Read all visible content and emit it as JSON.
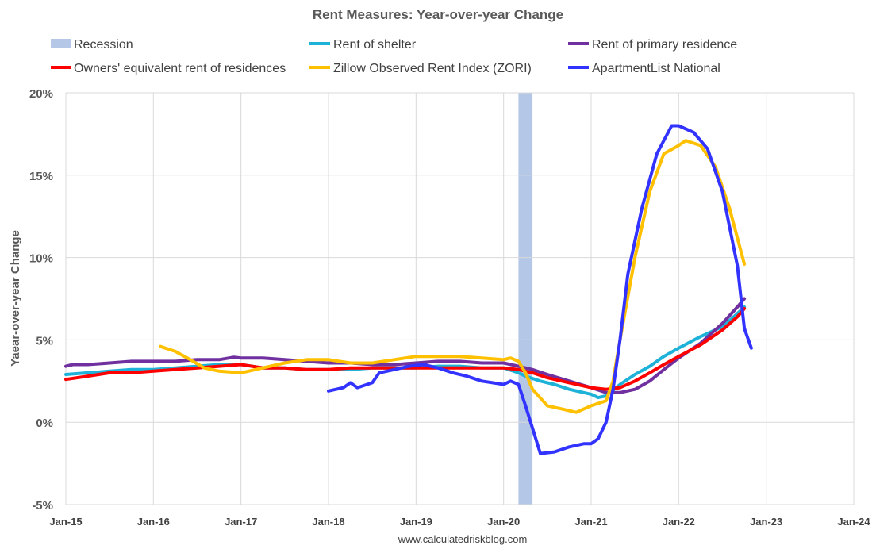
{
  "chart_data": {
    "type": "line",
    "title": "Rent Measures: Year-over-year Change",
    "ylabel": "Yaear-over-year Change",
    "xlabel": "",
    "footer": "www.calculatedriskblog.com",
    "ylim": [
      -5,
      20
    ],
    "yticks": [
      -5,
      0,
      5,
      10,
      15,
      20
    ],
    "ytick_labels": [
      "-5%",
      "0%",
      "5%",
      "10%",
      "15%",
      "20%"
    ],
    "xlim": [
      2015.0,
      2024.0
    ],
    "xtick_labels": [
      "Jan-15",
      "Jan-16",
      "Jan-17",
      "Jan-18",
      "Jan-19",
      "Jan-20",
      "Jan-21",
      "Jan-22",
      "Jan-23",
      "Jan-24"
    ],
    "grid": "vertical and horizontal",
    "legend_position": "top",
    "recession": {
      "name": "Recession",
      "start": 2020.17,
      "end": 2020.33,
      "color": "#b4c7e7"
    },
    "series": [
      {
        "name": "Rent of shelter",
        "color": "#1fb2d8",
        "points": [
          [
            2015.0,
            2.9
          ],
          [
            2015.25,
            3.0
          ],
          [
            2015.5,
            3.1
          ],
          [
            2015.75,
            3.2
          ],
          [
            2016.0,
            3.2
          ],
          [
            2016.25,
            3.3
          ],
          [
            2016.5,
            3.4
          ],
          [
            2016.75,
            3.5
          ],
          [
            2017.0,
            3.5
          ],
          [
            2017.25,
            3.3
          ],
          [
            2017.5,
            3.3
          ],
          [
            2017.75,
            3.2
          ],
          [
            2018.0,
            3.2
          ],
          [
            2018.25,
            3.2
          ],
          [
            2018.5,
            3.3
          ],
          [
            2018.75,
            3.3
          ],
          [
            2019.0,
            3.3
          ],
          [
            2019.25,
            3.4
          ],
          [
            2019.5,
            3.4
          ],
          [
            2019.75,
            3.3
          ],
          [
            2020.0,
            3.3
          ],
          [
            2020.17,
            3.0
          ],
          [
            2020.25,
            2.8
          ],
          [
            2020.42,
            2.5
          ],
          [
            2020.58,
            2.3
          ],
          [
            2020.75,
            2.0
          ],
          [
            2021.0,
            1.7
          ],
          [
            2021.08,
            1.5
          ],
          [
            2021.17,
            1.6
          ],
          [
            2021.33,
            2.3
          ],
          [
            2021.5,
            2.9
          ],
          [
            2021.67,
            3.4
          ],
          [
            2021.83,
            4.0
          ],
          [
            2022.0,
            4.5
          ],
          [
            2022.25,
            5.2
          ],
          [
            2022.5,
            5.8
          ],
          [
            2022.67,
            6.6
          ],
          [
            2022.75,
            7.0
          ]
        ]
      },
      {
        "name": "Rent of primary residence",
        "color": "#7030a0",
        "points": [
          [
            2015.0,
            3.4
          ],
          [
            2015.08,
            3.5
          ],
          [
            2015.25,
            3.5
          ],
          [
            2015.5,
            3.6
          ],
          [
            2015.75,
            3.7
          ],
          [
            2016.0,
            3.7
          ],
          [
            2016.25,
            3.7
          ],
          [
            2016.5,
            3.8
          ],
          [
            2016.75,
            3.8
          ],
          [
            2016.92,
            3.95
          ],
          [
            2017.0,
            3.9
          ],
          [
            2017.25,
            3.9
          ],
          [
            2017.5,
            3.8
          ],
          [
            2017.75,
            3.7
          ],
          [
            2018.0,
            3.6
          ],
          [
            2018.25,
            3.6
          ],
          [
            2018.5,
            3.5
          ],
          [
            2018.75,
            3.5
          ],
          [
            2019.0,
            3.6
          ],
          [
            2019.25,
            3.7
          ],
          [
            2019.5,
            3.7
          ],
          [
            2019.75,
            3.6
          ],
          [
            2020.0,
            3.6
          ],
          [
            2020.17,
            3.4
          ],
          [
            2020.33,
            3.2
          ],
          [
            2020.5,
            2.9
          ],
          [
            2020.75,
            2.5
          ],
          [
            2021.0,
            2.1
          ],
          [
            2021.17,
            1.8
          ],
          [
            2021.33,
            1.8
          ],
          [
            2021.5,
            2.0
          ],
          [
            2021.67,
            2.5
          ],
          [
            2021.83,
            3.2
          ],
          [
            2022.0,
            3.9
          ],
          [
            2022.25,
            4.8
          ],
          [
            2022.5,
            6.0
          ],
          [
            2022.67,
            7.0
          ],
          [
            2022.75,
            7.5
          ]
        ]
      },
      {
        "name": "Owners' equivalent rent of residences",
        "color": "#ff0000",
        "points": [
          [
            2015.0,
            2.6
          ],
          [
            2015.25,
            2.8
          ],
          [
            2015.5,
            3.0
          ],
          [
            2015.75,
            3.0
          ],
          [
            2016.0,
            3.1
          ],
          [
            2016.25,
            3.2
          ],
          [
            2016.5,
            3.3
          ],
          [
            2016.75,
            3.4
          ],
          [
            2017.0,
            3.5
          ],
          [
            2017.25,
            3.3
          ],
          [
            2017.5,
            3.3
          ],
          [
            2017.75,
            3.2
          ],
          [
            2018.0,
            3.2
          ],
          [
            2018.25,
            3.3
          ],
          [
            2018.5,
            3.3
          ],
          [
            2018.75,
            3.3
          ],
          [
            2019.0,
            3.3
          ],
          [
            2019.25,
            3.3
          ],
          [
            2019.5,
            3.3
          ],
          [
            2019.75,
            3.3
          ],
          [
            2020.0,
            3.3
          ],
          [
            2020.17,
            3.2
          ],
          [
            2020.33,
            3.0
          ],
          [
            2020.5,
            2.7
          ],
          [
            2020.75,
            2.4
          ],
          [
            2021.0,
            2.1
          ],
          [
            2021.17,
            2.0
          ],
          [
            2021.33,
            2.1
          ],
          [
            2021.5,
            2.5
          ],
          [
            2021.67,
            3.0
          ],
          [
            2021.83,
            3.5
          ],
          [
            2022.0,
            4.0
          ],
          [
            2022.25,
            4.7
          ],
          [
            2022.5,
            5.6
          ],
          [
            2022.67,
            6.4
          ],
          [
            2022.75,
            6.9
          ]
        ]
      },
      {
        "name": "Zillow Observed Rent Index (ZORI)",
        "color": "#ffc000",
        "points": [
          [
            2016.08,
            4.6
          ],
          [
            2016.25,
            4.3
          ],
          [
            2016.42,
            3.8
          ],
          [
            2016.58,
            3.3
          ],
          [
            2016.75,
            3.1
          ],
          [
            2017.0,
            3.0
          ],
          [
            2017.25,
            3.3
          ],
          [
            2017.5,
            3.6
          ],
          [
            2017.75,
            3.8
          ],
          [
            2018.0,
            3.8
          ],
          [
            2018.25,
            3.6
          ],
          [
            2018.5,
            3.6
          ],
          [
            2018.75,
            3.8
          ],
          [
            2019.0,
            4.0
          ],
          [
            2019.25,
            4.0
          ],
          [
            2019.5,
            4.0
          ],
          [
            2019.75,
            3.9
          ],
          [
            2020.0,
            3.8
          ],
          [
            2020.08,
            3.9
          ],
          [
            2020.17,
            3.7
          ],
          [
            2020.25,
            3.0
          ],
          [
            2020.33,
            2.0
          ],
          [
            2020.5,
            1.0
          ],
          [
            2020.67,
            0.8
          ],
          [
            2020.83,
            0.6
          ],
          [
            2021.0,
            1.0
          ],
          [
            2021.17,
            1.3
          ],
          [
            2021.25,
            2.5
          ],
          [
            2021.33,
            5.0
          ],
          [
            2021.5,
            10.0
          ],
          [
            2021.67,
            14.0
          ],
          [
            2021.83,
            16.3
          ],
          [
            2022.0,
            16.8
          ],
          [
            2022.08,
            17.1
          ],
          [
            2022.25,
            16.8
          ],
          [
            2022.42,
            15.5
          ],
          [
            2022.58,
            13.0
          ],
          [
            2022.75,
            9.6
          ]
        ]
      },
      {
        "name": "ApartmentList National",
        "color": "#3333ff",
        "points": [
          [
            2018.0,
            1.9
          ],
          [
            2018.17,
            2.1
          ],
          [
            2018.25,
            2.4
          ],
          [
            2018.33,
            2.1
          ],
          [
            2018.5,
            2.4
          ],
          [
            2018.58,
            3.0
          ],
          [
            2018.75,
            3.2
          ],
          [
            2018.92,
            3.4
          ],
          [
            2019.08,
            3.5
          ],
          [
            2019.25,
            3.3
          ],
          [
            2019.42,
            3.0
          ],
          [
            2019.58,
            2.8
          ],
          [
            2019.75,
            2.5
          ],
          [
            2020.0,
            2.3
          ],
          [
            2020.08,
            2.5
          ],
          [
            2020.17,
            2.3
          ],
          [
            2020.25,
            1.0
          ],
          [
            2020.42,
            -1.9
          ],
          [
            2020.58,
            -1.8
          ],
          [
            2020.75,
            -1.5
          ],
          [
            2020.92,
            -1.3
          ],
          [
            2021.0,
            -1.3
          ],
          [
            2021.08,
            -1.0
          ],
          [
            2021.17,
            0.0
          ],
          [
            2021.25,
            2.0
          ],
          [
            2021.33,
            5.0
          ],
          [
            2021.42,
            9.0
          ],
          [
            2021.58,
            13.0
          ],
          [
            2021.75,
            16.3
          ],
          [
            2021.92,
            18.0
          ],
          [
            2022.0,
            18.0
          ],
          [
            2022.17,
            17.6
          ],
          [
            2022.33,
            16.6
          ],
          [
            2022.5,
            14.0
          ],
          [
            2022.67,
            9.5
          ],
          [
            2022.75,
            5.7
          ],
          [
            2022.83,
            4.5
          ]
        ]
      }
    ]
  },
  "legend": [
    {
      "label": "Recession",
      "color": "#b4c7e7",
      "kind": "box"
    },
    {
      "label": "Rent of shelter",
      "color": "#1fb2d8",
      "kind": "line"
    },
    {
      "label": "Rent of primary residence",
      "color": "#7030a0",
      "kind": "line"
    },
    {
      "label": "Owners' equivalent rent of residences",
      "color": "#ff0000",
      "kind": "line"
    },
    {
      "label": "Zillow Observed Rent Index (ZORI)",
      "color": "#ffc000",
      "kind": "line"
    },
    {
      "label": "ApartmentList National",
      "color": "#3333ff",
      "kind": "line"
    }
  ]
}
